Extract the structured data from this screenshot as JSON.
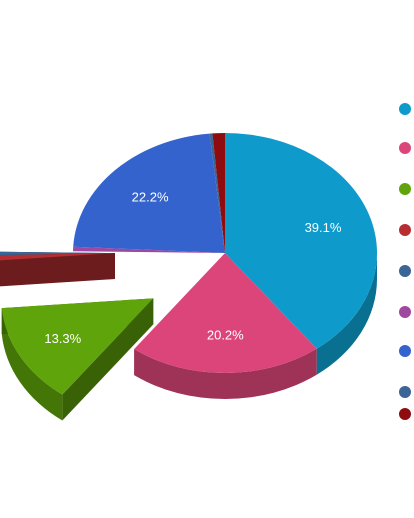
{
  "chart_data": {
    "type": "pie",
    "title": "",
    "three_d": true,
    "exploded": [
      2,
      3,
      4
    ],
    "legend": {
      "position": "right",
      "show_labels": false
    },
    "slices": [
      {
        "value": 39.1,
        "label": "39.1%",
        "color": "#0e9bcb"
      },
      {
        "value": 20.2,
        "label": "20.2%",
        "color": "#dc4579"
      },
      {
        "value": 13.3,
        "label": "13.3%",
        "color": "#5fa40a"
      },
      {
        "value": 0.9,
        "label": "",
        "color": "#b62e32"
      },
      {
        "value": 0.6,
        "label": "",
        "color": "#3b6594"
      },
      {
        "value": 0.6,
        "label": "",
        "color": "#9e489f"
      },
      {
        "value": 22.2,
        "label": "22.2%",
        "color": "#3463cd"
      },
      {
        "value": 0.3,
        "label": "",
        "color": "#3b6594"
      },
      {
        "value": 1.3,
        "label": "",
        "color": "#8e0c10"
      }
    ]
  }
}
